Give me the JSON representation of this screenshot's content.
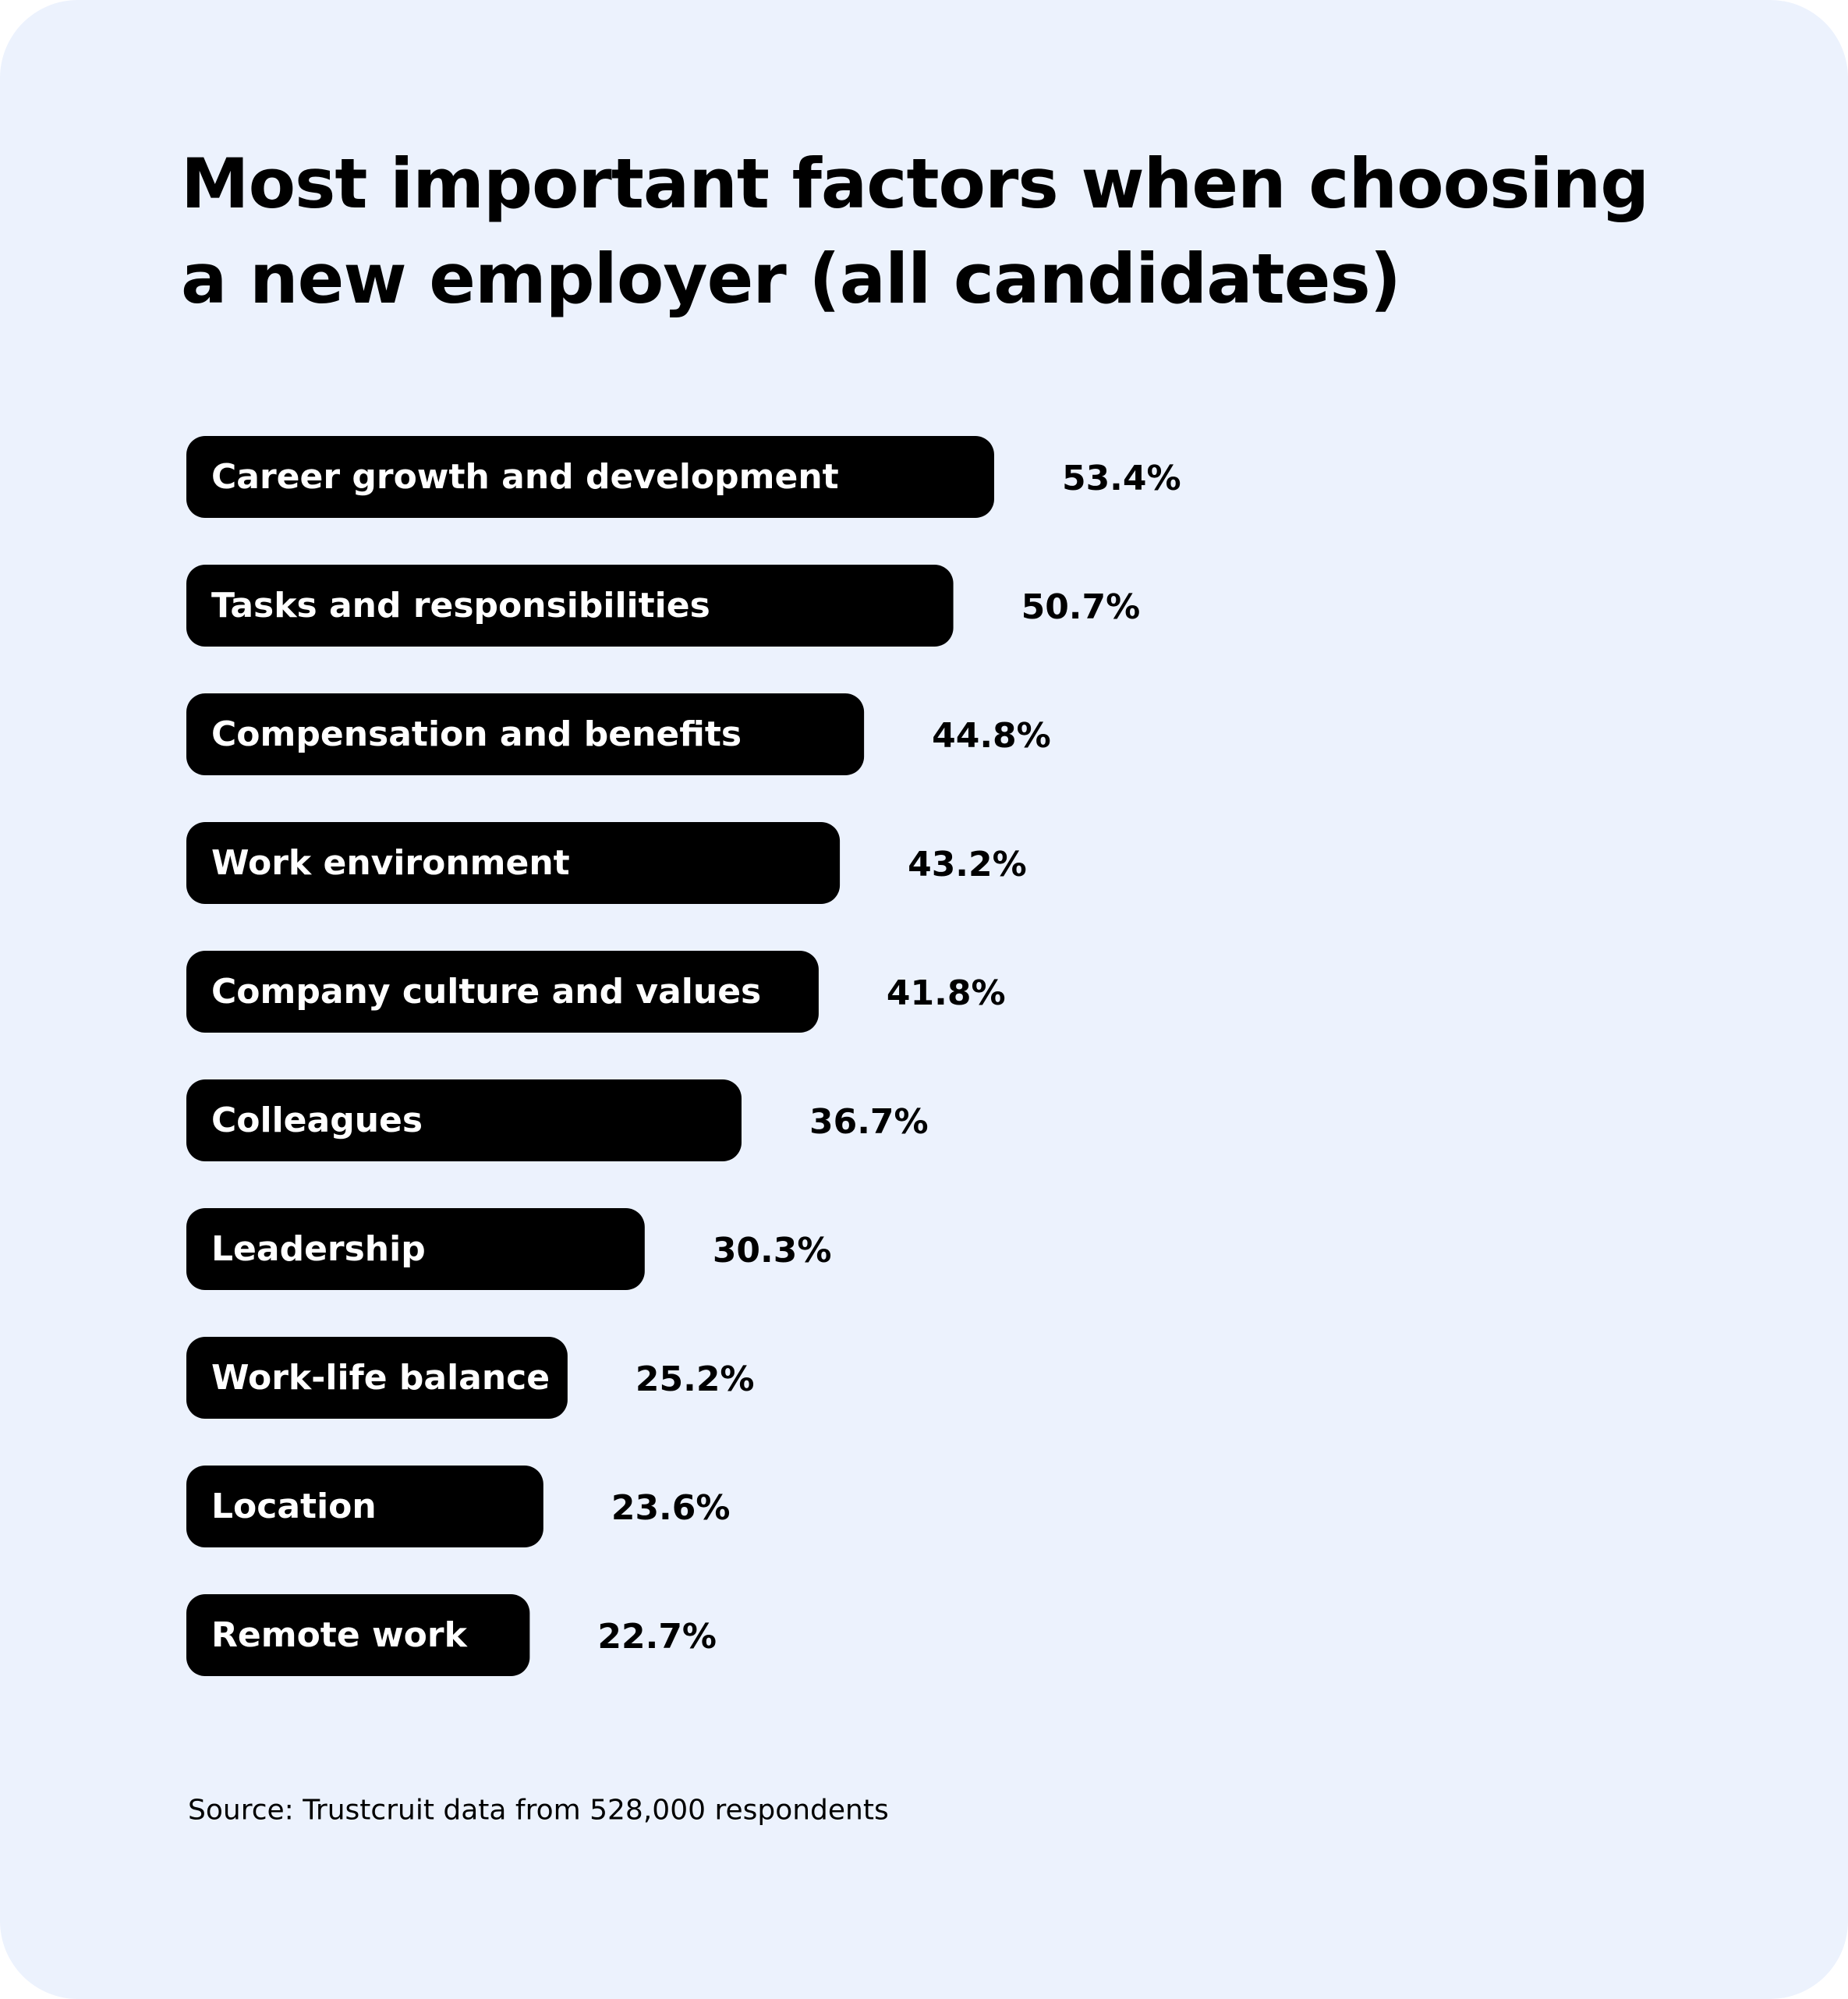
{
  "chart_data": {
    "type": "bar",
    "orientation": "horizontal",
    "title": "Most important factors when choosing a new employer (all candidates)",
    "categories": [
      "Career growth and development",
      "Tasks and responsibilities",
      "Compensation and benefits",
      "Work environment",
      "Company culture and values",
      "Colleagues",
      "Leadership",
      "Work-life balance",
      "Location",
      "Remote work"
    ],
    "values": [
      53.4,
      50.7,
      44.8,
      43.2,
      41.8,
      36.7,
      30.3,
      25.2,
      23.6,
      22.7
    ],
    "value_labels": [
      "53.4%",
      "50.7%",
      "44.8%",
      "43.2%",
      "41.8%",
      "36.7%",
      "30.3%",
      "25.2%",
      "23.6%",
      "22.7%"
    ],
    "color": "#000000",
    "source": "Source: Trustcruit data from 528,000 respondents"
  }
}
